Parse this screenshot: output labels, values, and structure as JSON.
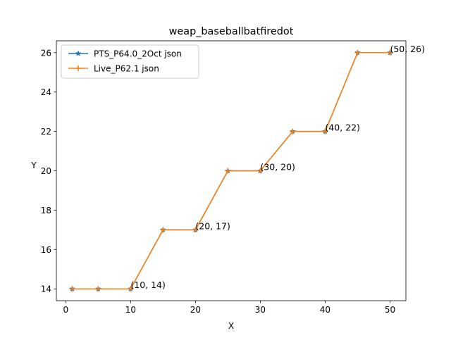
{
  "chart_data": {
    "type": "line",
    "title": "weap_baseballbatfiredot",
    "xlabel": "X",
    "ylabel": "Y",
    "xlim": [
      -1.45,
      52.45
    ],
    "ylim": [
      13.4,
      26.6
    ],
    "xticks": [
      "0",
      "10",
      "20",
      "30",
      "40",
      "50"
    ],
    "yticks": [
      "14",
      "16",
      "18",
      "20",
      "22",
      "24",
      "26"
    ],
    "grid": false,
    "legend_position": "upper-left",
    "series": [
      {
        "name": "PTS_P64.0_2Oct json",
        "color": "#1f77b4",
        "marker": "star",
        "x": [
          1,
          5,
          10,
          15,
          20,
          25,
          30,
          35,
          40,
          45,
          50
        ],
        "y": [
          14,
          14,
          14,
          17,
          17,
          20,
          20,
          22,
          22,
          26,
          26
        ]
      },
      {
        "name": "Live_P62.1 json",
        "color": "#ff7f0e",
        "marker": "plus",
        "x": [
          1,
          5,
          10,
          15,
          20,
          25,
          30,
          35,
          40,
          45,
          50
        ],
        "y": [
          14,
          14,
          14,
          17,
          17,
          20,
          20,
          22,
          22,
          26,
          26
        ]
      }
    ],
    "annotations": [
      {
        "text": "(10, 14)",
        "x": 10,
        "y": 14
      },
      {
        "text": "(20, 17)",
        "x": 20,
        "y": 17
      },
      {
        "text": "(30, 20)",
        "x": 30,
        "y": 20
      },
      {
        "text": "(40, 22)",
        "x": 40,
        "y": 22
      },
      {
        "text": "(50, 26)",
        "x": 50,
        "y": 26
      }
    ]
  }
}
